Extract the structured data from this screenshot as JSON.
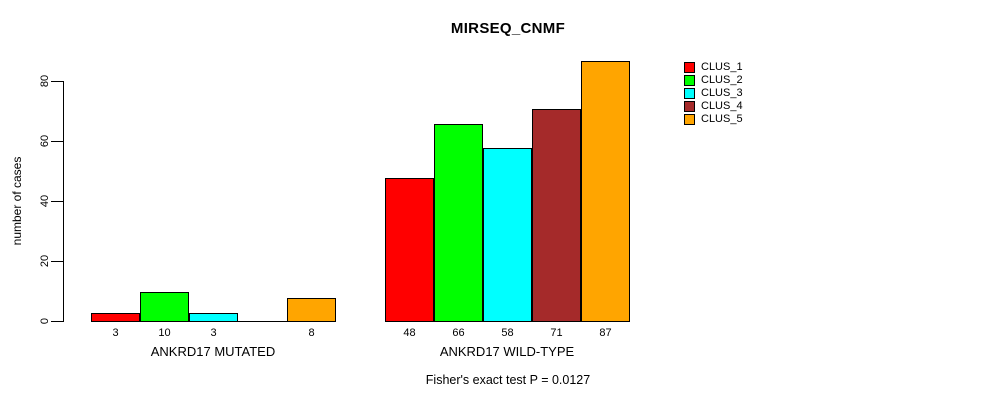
{
  "chart_data": {
    "type": "bar",
    "title": "MIRSEQ_CNMF",
    "ylabel": "number of cases",
    "xlabel": "",
    "ylim": [
      0,
      87
    ],
    "yticks": [
      0,
      20,
      40,
      60,
      80
    ],
    "grid": false,
    "legend_position": "right",
    "categories": [
      "ANKRD17 MUTATED",
      "ANKRD17 WILD-TYPE"
    ],
    "series": [
      {
        "name": "CLUS_1",
        "color": "#FF0000",
        "values": [
          3,
          48
        ]
      },
      {
        "name": "CLUS_2",
        "color": "#00FF00",
        "values": [
          10,
          66
        ]
      },
      {
        "name": "CLUS_3",
        "color": "#00FFFF",
        "values": [
          3,
          58
        ]
      },
      {
        "name": "CLUS_4",
        "color": "#A52A2A",
        "values": [
          0,
          71
        ]
      },
      {
        "name": "CLUS_5",
        "color": "#FFA500",
        "values": [
          8,
          87
        ]
      }
    ],
    "groups": [
      {
        "label": "ANKRD17 MUTATED",
        "values": [
          3,
          10,
          3,
          0,
          8
        ],
        "bar_labels": [
          "3",
          "10",
          "3",
          "",
          "8"
        ]
      },
      {
        "label": "ANKRD17 WILD-TYPE",
        "values": [
          48,
          66,
          58,
          71,
          87
        ],
        "bar_labels": [
          "48",
          "66",
          "58",
          "71",
          "87"
        ]
      }
    ],
    "annotation": "Fisher's exact test P = 0.0127"
  }
}
